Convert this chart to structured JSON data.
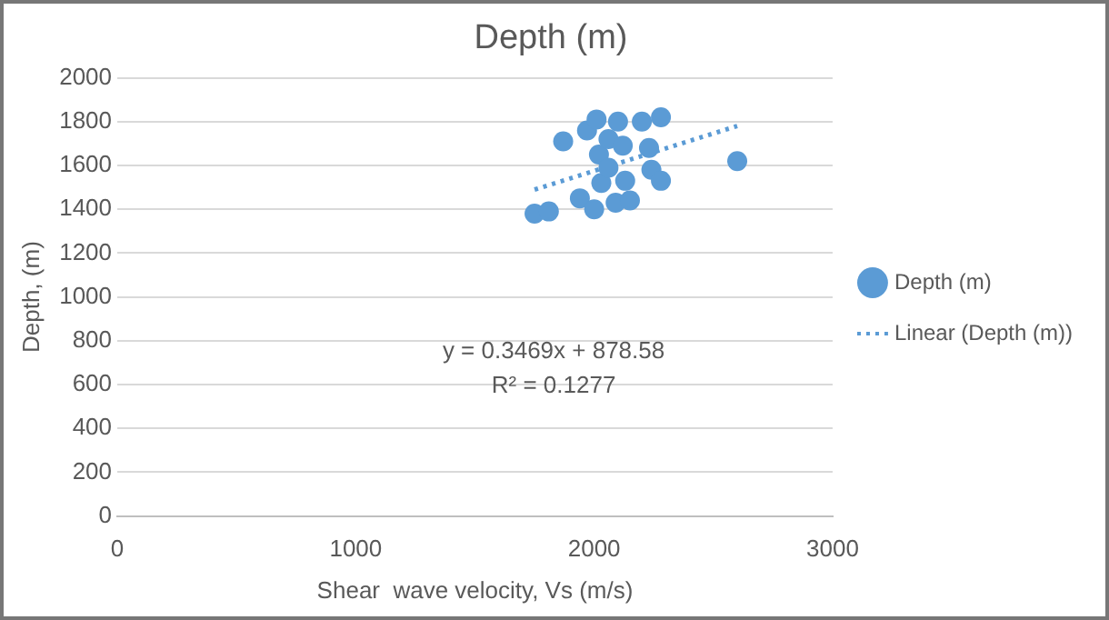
{
  "chart_data": {
    "type": "scatter",
    "title": "Depth (m)",
    "xlabel": "Shear  wave velocity, Vs (m/s)",
    "ylabel": "Depth, (m)",
    "xlim": [
      0,
      3000
    ],
    "xticks": [
      0,
      1000,
      2000,
      3000
    ],
    "ylim": [
      0,
      2000
    ],
    "yticks": [
      0,
      200,
      400,
      600,
      800,
      1000,
      1200,
      1400,
      1600,
      1800,
      2000
    ],
    "grid": "y",
    "legend": "right",
    "marker": "circle",
    "annotations": [
      "y = 0.3469x + 878.58",
      "R² = 0.1277"
    ],
    "series": [
      {
        "name": "Depth (m)",
        "color": "#5b9bd5",
        "x": [
          1750,
          1810,
          1870,
          1940,
          1970,
          2000,
          2010,
          2100,
          2030,
          2020,
          2060,
          2060,
          2090,
          2120,
          2150,
          2200,
          2230,
          2240,
          2280,
          2280,
          2600,
          2130
        ],
        "values": [
          1380,
          1390,
          1710,
          1450,
          1760,
          1400,
          1810,
          1800,
          1520,
          1650,
          1590,
          1720,
          1430,
          1690,
          1440,
          1800,
          1680,
          1580,
          1820,
          1530,
          1620,
          1530
        ]
      },
      {
        "name": "Linear (Depth (m))",
        "color": "#5b9bd5",
        "type": "line",
        "line_style": "dotted",
        "marker": "none",
        "x": [
          1750,
          2600
        ],
        "values": [
          1490,
          1780
        ]
      }
    ]
  }
}
